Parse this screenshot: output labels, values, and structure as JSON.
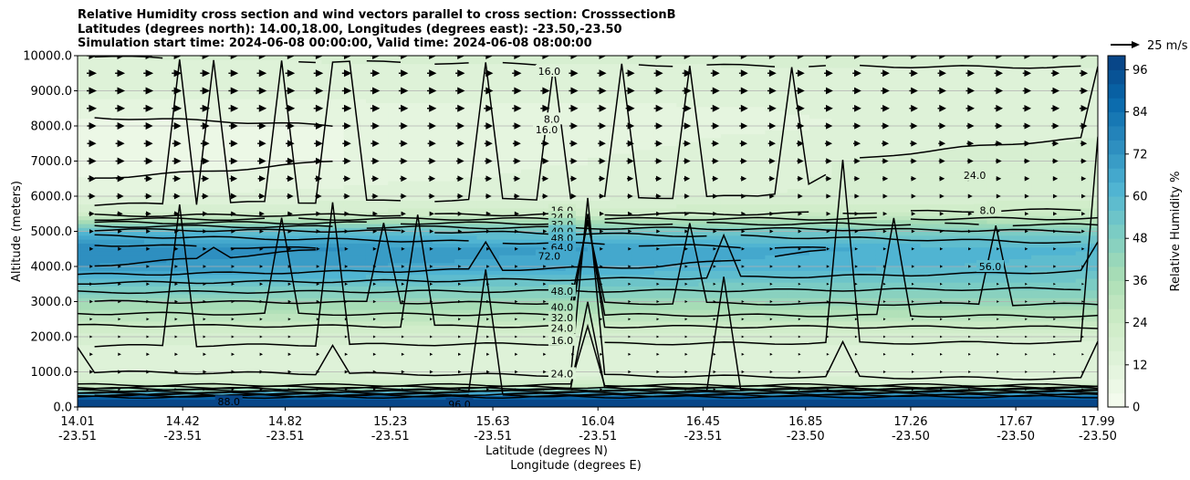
{
  "figure": {
    "title_lines": [
      "Relative Humidity cross section and wind vectors parallel to cross section: CrosssectionB",
      "Latitudes (degrees north): 14.00,18.00, Longitudes (degrees east): -23.50,-23.50",
      "Simulation start time: 2024-06-08 00:00:00, Valid time: 2024-06-08 08:00:00"
    ]
  },
  "chart_data": {
    "type": "heatmap",
    "variable": "Relative Humidity %",
    "xlabel": "Latitude (degrees N)",
    "xlabel2": "Longitude (degrees E)",
    "ylabel": "Altitude (meters)",
    "x_ticks_lat": [
      "14.01",
      "14.42",
      "14.82",
      "15.23",
      "15.63",
      "16.04",
      "16.45",
      "16.85",
      "17.26",
      "17.67",
      "17.99"
    ],
    "x_ticks_lon": [
      "-23.51",
      "-23.51",
      "-23.51",
      "-23.51",
      "-23.51",
      "-23.51",
      "-23.51",
      "-23.50",
      "-23.50",
      "-23.50",
      "-23.50"
    ],
    "x_tick_values": [
      14.01,
      14.42,
      14.82,
      15.23,
      15.63,
      16.04,
      16.45,
      16.85,
      17.26,
      17.67,
      17.99
    ],
    "xlim": [
      14.01,
      17.99
    ],
    "y_ticks": [
      "0.0",
      "1000.0",
      "2000.0",
      "3000.0",
      "4000.0",
      "5000.0",
      "6000.0",
      "7000.0",
      "8000.0",
      "9000.0",
      "10000.0"
    ],
    "ylim": [
      0,
      10000
    ],
    "grid": "horizontal",
    "colorbar": {
      "label": "Relative Humidity %",
      "ticks": [
        "0",
        "12",
        "24",
        "36",
        "48",
        "60",
        "72",
        "84",
        "96"
      ],
      "range": [
        0,
        100
      ],
      "colors": [
        "#f7fcf0",
        "#e0f3db",
        "#ccebc5",
        "#a8ddb5",
        "#7bccc4",
        "#4eb3d3",
        "#2b8cbe",
        "#0868ac",
        "#084081"
      ]
    },
    "contour_labels": [
      "16.0",
      "8.0",
      "16.0",
      "24.0",
      "8.0",
      "16.0",
      "24.0",
      "32.0",
      "40.0",
      "48.0",
      "64.0",
      "72.0",
      "56.0",
      "48.0",
      "40.0",
      "32.0",
      "24.0",
      "16.0",
      "24.0",
      "96.0",
      "88.0"
    ],
    "rh_profile": {
      "altitude_m": [
        0,
        250,
        400,
        600,
        800,
        1200,
        2000,
        2500,
        3000,
        3500,
        4000,
        4500,
        5000,
        5500,
        6000,
        7000,
        8000,
        9000,
        10000
      ],
      "rh_left": [
        98,
        96,
        60,
        25,
        18,
        14,
        17,
        28,
        40,
        55,
        72,
        76,
        60,
        20,
        12,
        4,
        6,
        14,
        16
      ],
      "rh_right": [
        98,
        96,
        70,
        25,
        16,
        12,
        17,
        30,
        42,
        50,
        58,
        60,
        48,
        26,
        18,
        20,
        14,
        12,
        18
      ]
    },
    "wind_reference": "25 m/s",
    "wind_profile": {
      "altitude_m": [
        0,
        500,
        1000,
        1500,
        2000,
        2500,
        3000,
        3500,
        4000,
        4500,
        5000,
        5500,
        6000,
        6500,
        7000,
        7500,
        8000,
        8500,
        9000,
        9500,
        10000
      ],
      "speed_left_ms": [
        0,
        2,
        4,
        3,
        2,
        2,
        3,
        3,
        3,
        4,
        5,
        7,
        9,
        10,
        11,
        11,
        11,
        12,
        12,
        12,
        12
      ],
      "speed_right_ms": [
        0,
        1,
        1,
        1,
        1,
        1,
        1,
        1,
        2,
        2,
        3,
        4,
        5,
        6,
        7,
        8,
        9,
        10,
        10,
        10,
        10
      ]
    }
  }
}
